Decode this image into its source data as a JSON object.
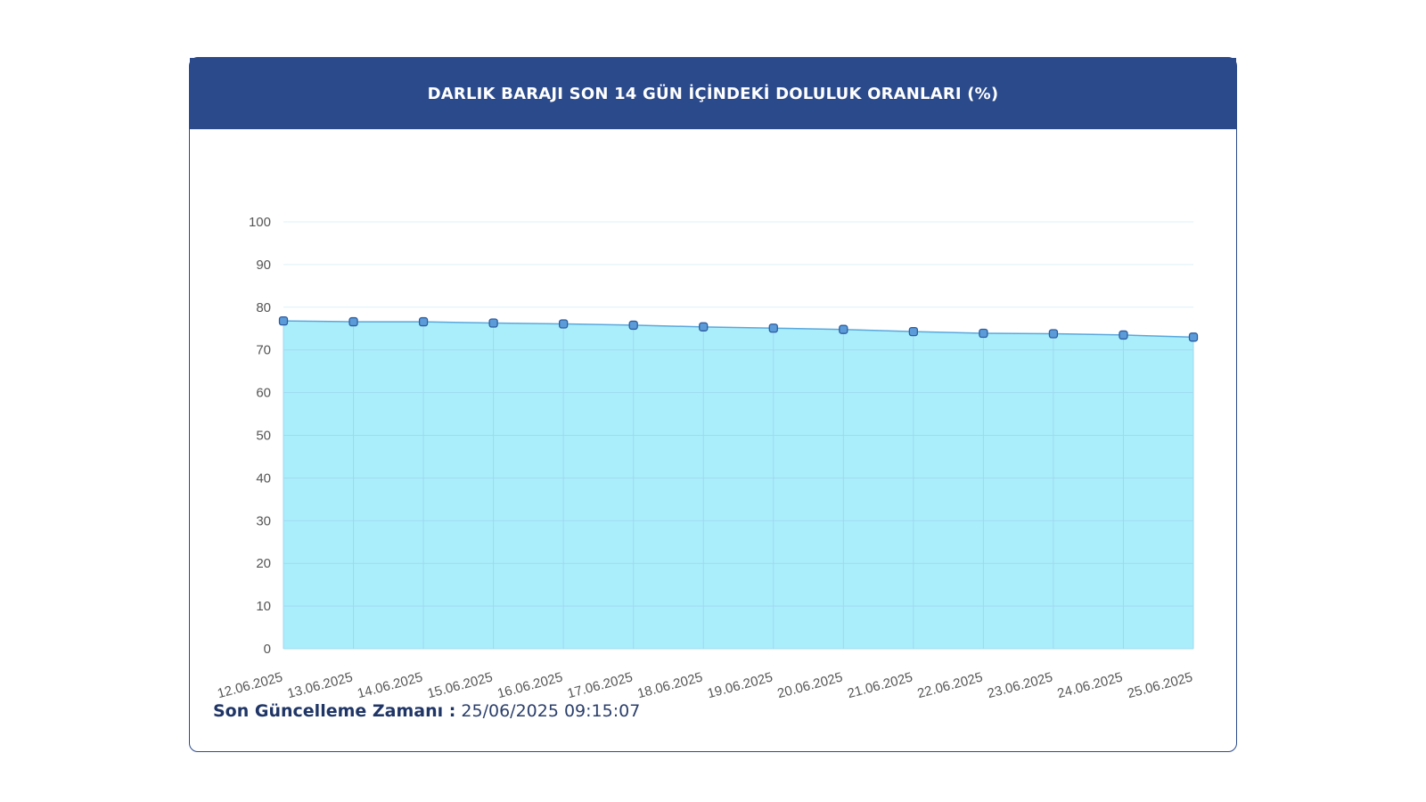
{
  "header": {
    "title": "DARLIK BARAJI SON 14 GÜN İÇİNDEKİ DOLULUK ORANLARI (%)"
  },
  "footer": {
    "label": "Son Güncelleme Zamanı :",
    "value": "25/06/2025 09:15:07"
  },
  "colors": {
    "header_bg": "#2b4a8b",
    "area_fill": "#aaeefb",
    "line": "#5aa8dc",
    "marker_fill": "#5b9bd9",
    "marker_stroke": "#2e5c9e",
    "grid": "#9fd8f0"
  },
  "chart_data": {
    "type": "area",
    "title": "",
    "xlabel": "",
    "ylabel": "",
    "ylim": [
      0,
      100
    ],
    "yticks": [
      0,
      10,
      20,
      30,
      40,
      50,
      60,
      70,
      80,
      90,
      100
    ],
    "grid": true,
    "categories": [
      "12.06.2025",
      "13.06.2025",
      "14.06.2025",
      "15.06.2025",
      "16.06.2025",
      "17.06.2025",
      "18.06.2025",
      "19.06.2025",
      "20.06.2025",
      "21.06.2025",
      "22.06.2025",
      "23.06.2025",
      "24.06.2025",
      "25.06.2025"
    ],
    "values": [
      76.8,
      76.6,
      76.6,
      76.3,
      76.1,
      75.8,
      75.4,
      75.1,
      74.8,
      74.3,
      73.9,
      73.8,
      73.5,
      73.0
    ]
  }
}
